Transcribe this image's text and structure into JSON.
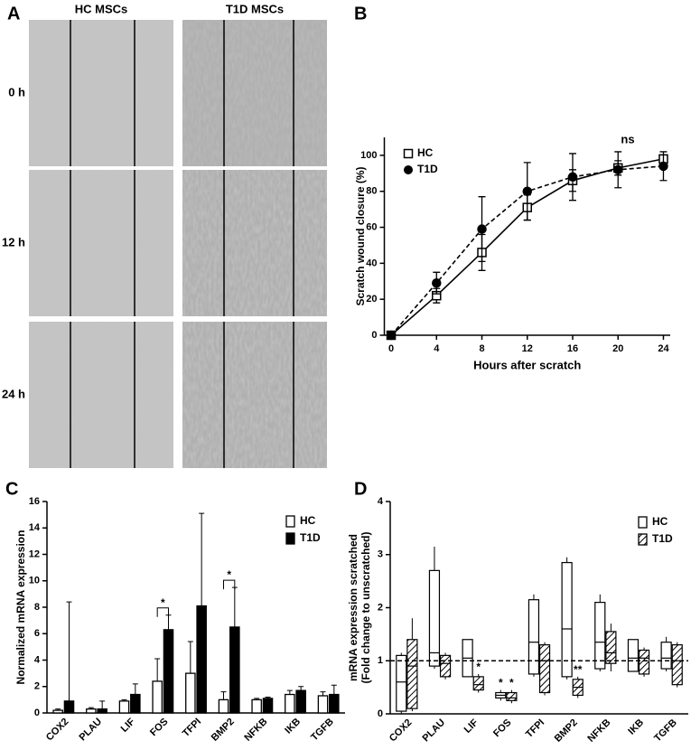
{
  "panel_a": {
    "label": "A",
    "columns": [
      "HC MSCs",
      "T1D MSCs"
    ],
    "rows": [
      "0 h",
      "12 h",
      "24 h"
    ]
  },
  "chart_data": [
    {
      "type": "line",
      "label": "B",
      "xlabel": "Hours after scratch",
      "ylabel": "Scratch wound closure (%)",
      "annotation": "ns",
      "x": [
        0,
        4,
        8,
        12,
        16,
        20,
        24
      ],
      "xlim": [
        -0.6,
        24.6
      ],
      "xticks": [
        0,
        4,
        8,
        12,
        16,
        20,
        24
      ],
      "ylim": [
        0,
        110
      ],
      "yticks": [
        0,
        20,
        40,
        60,
        80,
        100
      ],
      "series": [
        {
          "name": "HC",
          "color": "#ffffff",
          "marker": "square",
          "line_style": "solid",
          "values": [
            0,
            22,
            46,
            71,
            86,
            93,
            98
          ],
          "errors": [
            0,
            4,
            10,
            7,
            6,
            4,
            2
          ]
        },
        {
          "name": "T1D",
          "color": "#000000",
          "marker": "circle",
          "line_style": "dashed",
          "values": [
            0,
            29,
            59,
            80,
            88,
            92,
            94
          ],
          "errors": [
            0,
            6,
            18,
            16,
            13,
            10,
            8
          ]
        }
      ]
    },
    {
      "type": "bar",
      "label": "C",
      "ylabel": "Normalized mRNA expression",
      "categories": [
        "COX2",
        "PLAU",
        "LIF",
        "FOS",
        "TFPI",
        "BMP2",
        "NFKB",
        "IKB",
        "TGFB"
      ],
      "ylim": [
        0,
        16
      ],
      "yticks": [
        0,
        2,
        4,
        6,
        8,
        10,
        12,
        14,
        16
      ],
      "significance": [
        "*",
        "*"
      ],
      "series": [
        {
          "name": "HC",
          "color": "#ffffff",
          "values": [
            0.2,
            0.3,
            0.9,
            2.4,
            3.0,
            1.0,
            1.0,
            1.4,
            1.3
          ],
          "errors": [
            0.1,
            0.1,
            0.1,
            1.7,
            2.4,
            0.6,
            0.1,
            0.3,
            0.3
          ]
        },
        {
          "name": "T1D",
          "color": "#000000",
          "values": [
            0.9,
            0.3,
            1.4,
            6.3,
            8.1,
            6.5,
            1.1,
            1.7,
            1.4
          ],
          "errors": [
            7.5,
            0.6,
            0.8,
            1.1,
            7.0,
            3.0,
            0.1,
            0.3,
            0.7
          ]
        }
      ]
    },
    {
      "type": "box",
      "label": "D",
      "ylabel": [
        "mRNA expression scratched",
        "(Fold change to unscratched)"
      ],
      "categories": [
        "COX2",
        "PLAU",
        "LIF",
        "FOS",
        "TFPI",
        "BMP2",
        "NFKB",
        "IKB",
        "TGFB"
      ],
      "ylim": [
        0,
        4
      ],
      "yticks": [
        0,
        1,
        2,
        3,
        4
      ],
      "refline": 1,
      "significance": [
        "*",
        "*",
        "*",
        "**"
      ],
      "series": [
        {
          "name": "HC",
          "color": "#ffffff",
          "hatch": false,
          "values": [
            [
              0.0,
              0.05,
              0.6,
              1.1,
              1.15
            ],
            [
              0.85,
              0.9,
              1.15,
              2.7,
              3.15
            ],
            [
              0.7,
              0.7,
              1.05,
              1.4,
              1.4
            ],
            [
              0.25,
              0.3,
              0.35,
              0.4,
              0.45
            ],
            [
              0.7,
              0.75,
              1.35,
              2.15,
              2.25
            ],
            [
              0.65,
              0.7,
              1.6,
              2.85,
              2.95
            ],
            [
              0.8,
              0.85,
              1.35,
              2.1,
              2.25
            ],
            [
              0.8,
              0.8,
              1.05,
              1.4,
              1.4
            ],
            [
              0.8,
              0.85,
              1.05,
              1.35,
              1.45
            ]
          ]
        },
        {
          "name": "T1D",
          "color": "#ffffff",
          "hatch": true,
          "values": [
            [
              0.05,
              0.1,
              0.9,
              1.4,
              1.8
            ],
            [
              0.65,
              0.7,
              0.95,
              1.1,
              1.15
            ],
            [
              0.4,
              0.45,
              0.55,
              0.7,
              0.75
            ],
            [
              0.2,
              0.25,
              0.3,
              0.4,
              0.45
            ],
            [
              0.35,
              0.4,
              1.0,
              1.3,
              1.35
            ],
            [
              0.3,
              0.35,
              0.5,
              0.65,
              0.7
            ],
            [
              0.8,
              0.95,
              1.15,
              1.55,
              1.7
            ],
            [
              0.7,
              0.75,
              1.05,
              1.2,
              1.25
            ],
            [
              0.5,
              0.55,
              1.0,
              1.3,
              1.35
            ]
          ]
        }
      ]
    }
  ]
}
